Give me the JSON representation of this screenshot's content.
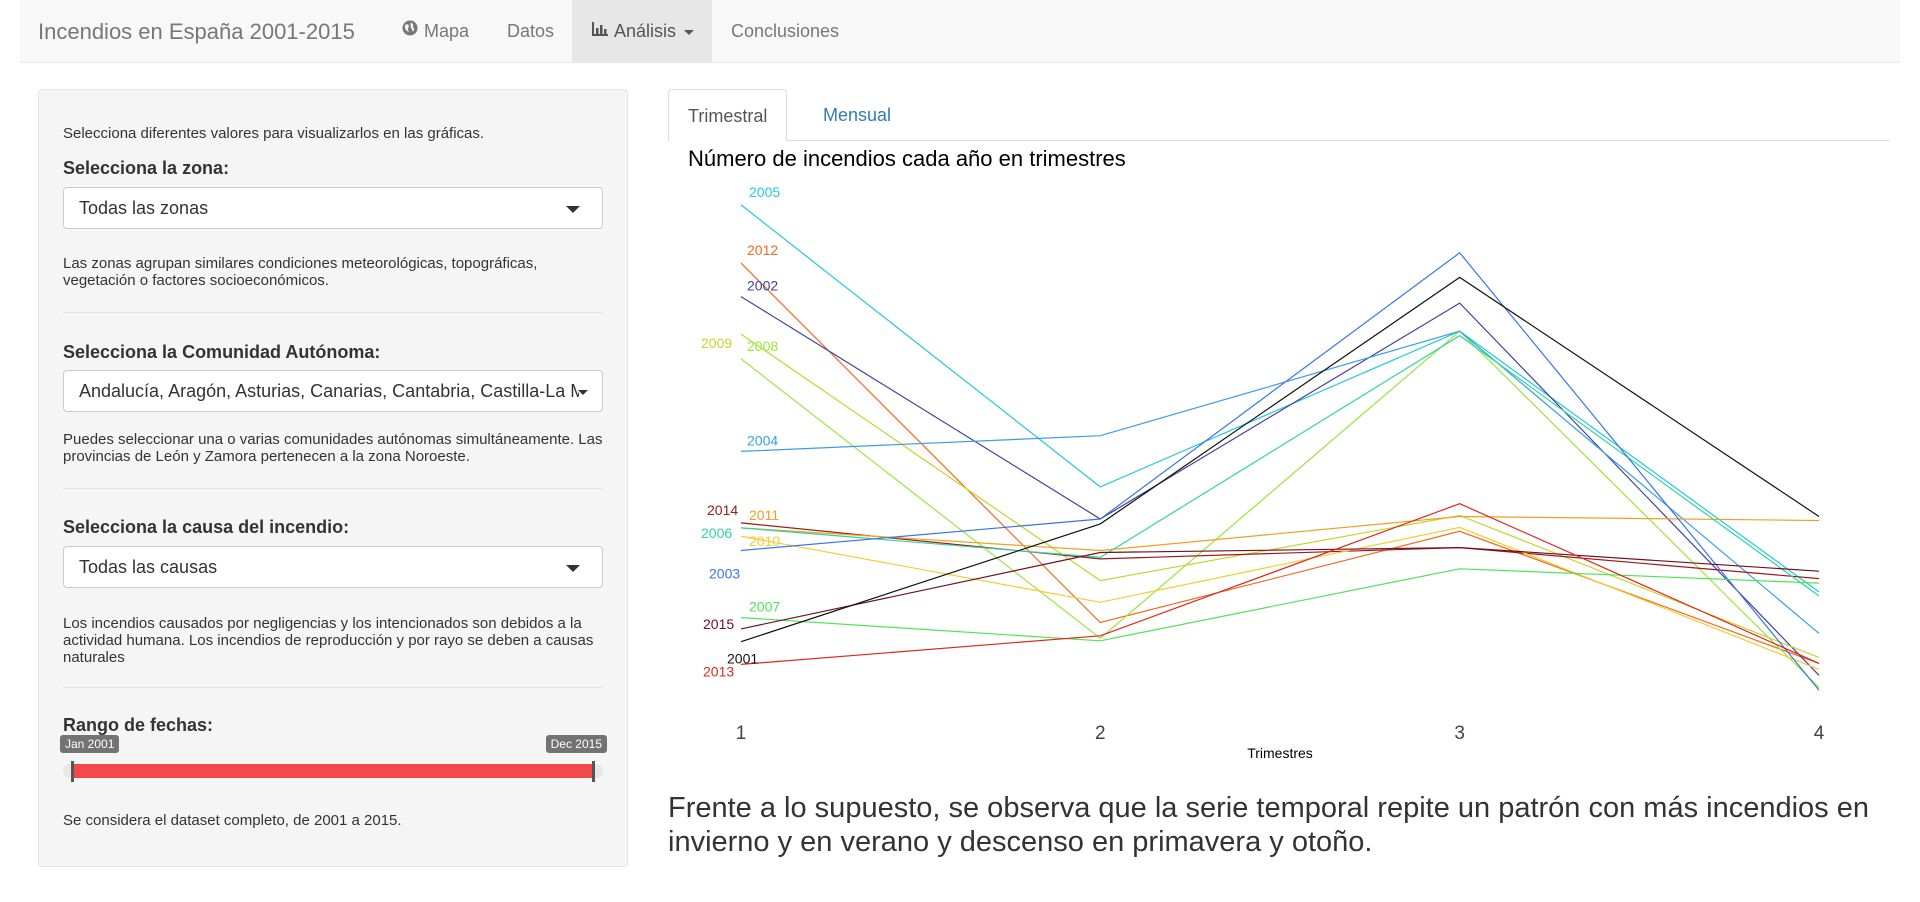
{
  "navbar": {
    "brand": "Incendios en España 2001-2015",
    "items": [
      {
        "label": "Mapa",
        "icon": "globe-icon"
      },
      {
        "label": "Datos"
      },
      {
        "label": "Análisis",
        "icon": "bar-chart-icon",
        "active": true,
        "dropdown": true
      },
      {
        "label": "Conclusiones"
      }
    ]
  },
  "sidebar": {
    "intro": "Selecciona diferentes valores para visualizarlos en las gráficas.",
    "zona": {
      "label": "Selecciona la zona:",
      "value": "Todas las zonas",
      "help": "Las zonas agrupan similares condiciones meteorológicas, topográficas, vegetación o factores socioeconómicos."
    },
    "comunidad": {
      "label": "Selecciona la Comunidad Autónoma:",
      "value": "Andalucía, Aragón, Asturias, Canarias, Cantabria, Castilla-La M",
      "help": "Puedes seleccionar una o varias comunidades autónomas simultáneamente. Las provincias de León y Zamora pertenecen a la zona Noroeste."
    },
    "causa": {
      "label": "Selecciona la causa del incendio:",
      "value": "Todas las causas",
      "help": "Los incendios causados por negligencias y los intencionados son debidos a la actividad humana. Los incendios de reproducción y por rayo se deben a causas naturales"
    },
    "fechas": {
      "label": "Rango de fechas:",
      "from": "Jan 2001",
      "to": "Dec 2015",
      "help": "Se considera el dataset completo, de 2001 a 2015.",
      "bar_color": "#f24a4a"
    }
  },
  "tabs": [
    {
      "label": "Trimestral",
      "active": true
    },
    {
      "label": "Mensual",
      "active": false
    }
  ],
  "chart_data": {
    "type": "line",
    "title": "Número de incendios cada año en trimestres",
    "xlabel": "Trimestres",
    "ylabel": "",
    "x": [
      1,
      2,
      3,
      4
    ],
    "ylim": [
      0,
      1
    ],
    "grid": false,
    "legend": "labels at line start",
    "series": [
      {
        "name": "2005",
        "color": "#22cbd6",
        "values": [
          0.992,
          0.42,
          0.736,
          0.207
        ]
      },
      {
        "name": "2012",
        "color": "#f06a20",
        "values": [
          0.874,
          0.145,
          0.33,
          0.062
        ]
      },
      {
        "name": "2002",
        "color": "#46409e",
        "values": [
          0.806,
          0.355,
          0.793,
          0.038
        ]
      },
      {
        "name": "2009",
        "color": "#c2d62a",
        "values": [
          0.73,
          0.23,
          0.362,
          0.074
        ]
      },
      {
        "name": "2008",
        "color": "#9be63c",
        "values": [
          0.68,
          0.113,
          0.736,
          0.013
        ]
      },
      {
        "name": "2004",
        "color": "#3a9ee6",
        "values": [
          0.492,
          0.524,
          0.736,
          0.123
        ]
      },
      {
        "name": "2014",
        "color": "#a01818",
        "values": [
          0.347,
          0.274,
          0.297,
          0.234
        ]
      },
      {
        "name": "2011",
        "color": "#f0a020",
        "values": [
          0.337,
          0.291,
          0.36,
          0.352
        ]
      },
      {
        "name": "2010",
        "color": "#f4cc30",
        "values": [
          0.32,
          0.186,
          0.338,
          0.05
        ]
      },
      {
        "name": "2006",
        "color": "#2cd6a0",
        "values": [
          0.337,
          0.277,
          0.727,
          0.199
        ]
      },
      {
        "name": "2003",
        "color": "#3a74e6",
        "values": [
          0.291,
          0.355,
          0.895,
          0.008
        ]
      },
      {
        "name": "2007",
        "color": "#4ce65a",
        "values": [
          0.155,
          0.108,
          0.254,
          0.225
        ]
      },
      {
        "name": "2015",
        "color": "#701020",
        "values": [
          0.132,
          0.287,
          0.297,
          0.249
        ]
      },
      {
        "name": "2001",
        "color": "#111111",
        "values": [
          0.106,
          0.345,
          0.845,
          0.36
        ]
      },
      {
        "name": "2013",
        "color": "#e02818",
        "values": [
          0.06,
          0.118,
          0.386,
          0.062
        ]
      }
    ]
  },
  "note": "Frente a lo supuesto, se observa que la serie temporal repite un patrón con más incendios en invierno y en verano y descenso en primavera y otoño."
}
